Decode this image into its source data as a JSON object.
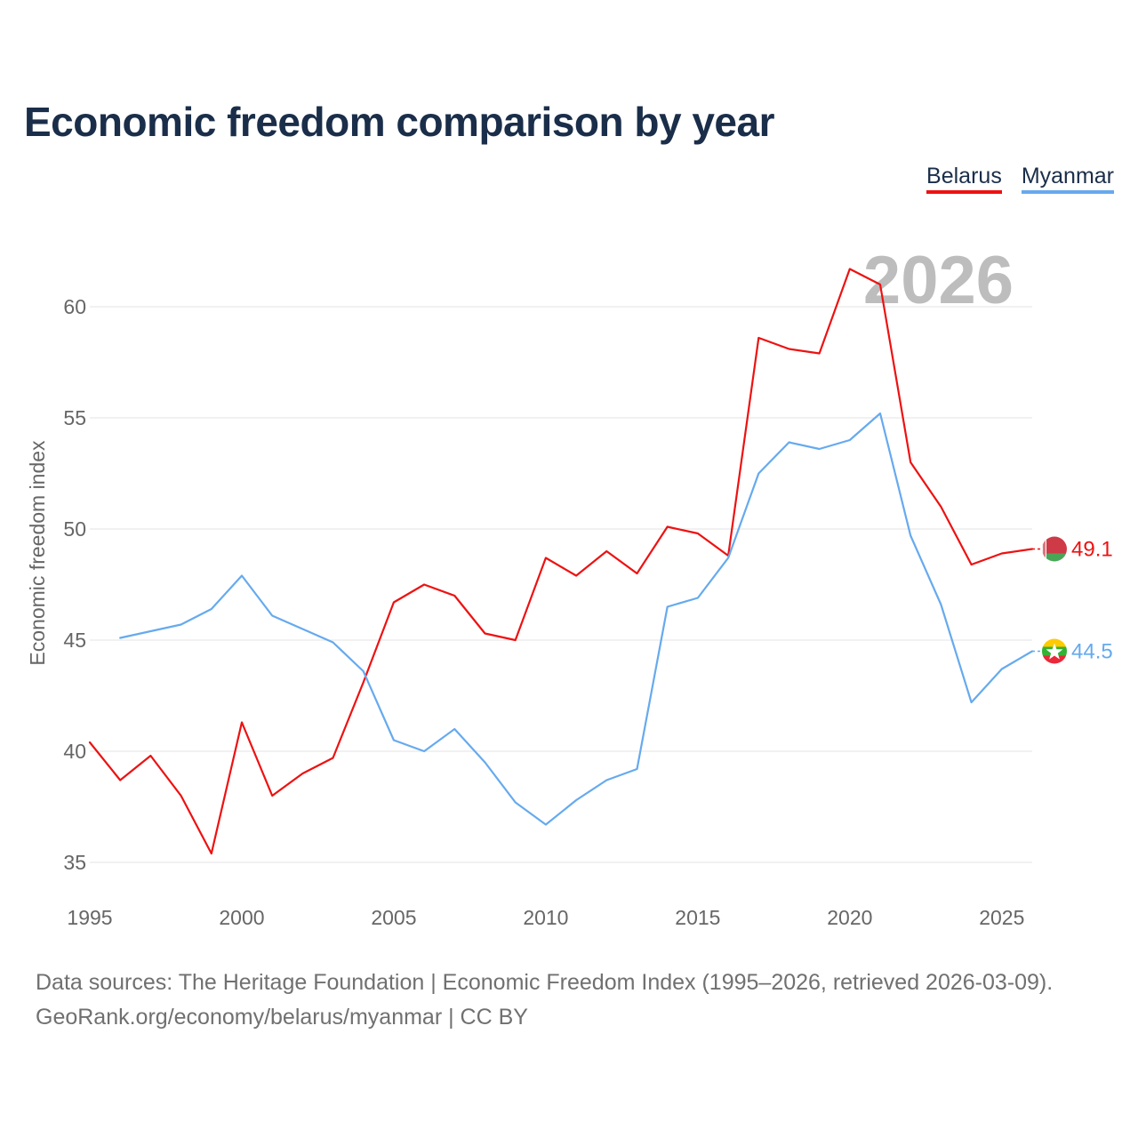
{
  "title": "Economic freedom comparison by year",
  "legend": [
    {
      "label": "Belarus",
      "color": "#ee1111"
    },
    {
      "label": "Myanmar",
      "color": "#66aaee"
    }
  ],
  "chart_data": {
    "type": "line",
    "title": "Economic freedom comparison by year",
    "xlabel": "",
    "ylabel": "Economic freedom index",
    "xlim": [
      1995,
      2026
    ],
    "ylim": [
      34,
      63
    ],
    "xticks": [
      1995,
      2000,
      2005,
      2010,
      2015,
      2020,
      2025
    ],
    "yticks": [
      35,
      40,
      45,
      50,
      55,
      60
    ],
    "grid": true,
    "year_label": "2026",
    "series": [
      {
        "name": "Belarus",
        "color": "#ee1111",
        "end_label": "49.1",
        "x": [
          1995,
          1996,
          1997,
          1998,
          1999,
          2000,
          2001,
          2002,
          2003,
          2004,
          2005,
          2006,
          2007,
          2008,
          2009,
          2010,
          2011,
          2012,
          2013,
          2014,
          2015,
          2016,
          2017,
          2018,
          2019,
          2020,
          2021,
          2022,
          2023,
          2024,
          2025,
          2026
        ],
        "y": [
          40.4,
          38.7,
          39.8,
          38.0,
          35.4,
          41.3,
          38.0,
          39.0,
          39.7,
          43.1,
          46.7,
          47.5,
          47.0,
          45.3,
          45.0,
          48.7,
          47.9,
          49.0,
          48.0,
          50.1,
          49.8,
          48.8,
          58.6,
          58.1,
          57.9,
          61.7,
          61.0,
          53.0,
          51.0,
          48.4,
          48.9,
          49.1
        ]
      },
      {
        "name": "Myanmar",
        "color": "#66aaee",
        "end_label": "44.5",
        "x": [
          1996,
          1997,
          1998,
          1999,
          2000,
          2001,
          2002,
          2003,
          2004,
          2005,
          2006,
          2007,
          2008,
          2009,
          2010,
          2011,
          2012,
          2013,
          2014,
          2015,
          2016,
          2017,
          2018,
          2019,
          2020,
          2021,
          2022,
          2023,
          2024,
          2025,
          2026
        ],
        "y": [
          45.1,
          45.4,
          45.7,
          46.4,
          47.9,
          46.1,
          45.5,
          44.9,
          43.6,
          40.5,
          40.0,
          41.0,
          39.5,
          37.7,
          36.7,
          37.8,
          38.7,
          39.2,
          46.5,
          46.9,
          48.7,
          52.5,
          53.9,
          53.6,
          54.0,
          55.2,
          49.7,
          46.6,
          42.2,
          43.7,
          44.5
        ]
      }
    ]
  },
  "source_lines": [
    "Data sources: The Heritage Foundation | Economic Freedom Index (1995–2026, retrieved 2026-03-09).",
    "GeoRank.org/economy/belarus/myanmar | CC BY"
  ]
}
